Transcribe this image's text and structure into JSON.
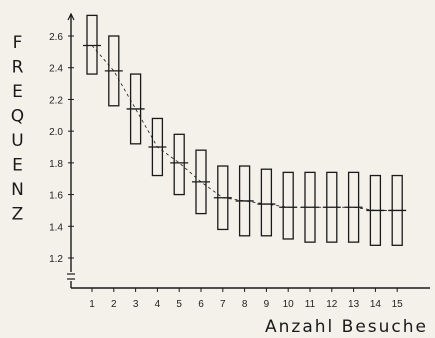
{
  "chart_data": {
    "type": "box",
    "ylabel": "FREQUENZ",
    "xlabel": "Anzahl Besuche",
    "y_axis_break": true,
    "ylim": [
      1.1,
      2.75
    ],
    "yticks": [
      "2.6",
      "2.4",
      "2.2",
      "2.0",
      "1.8",
      "1.6",
      "1.4",
      "1.2"
    ],
    "categories": [
      "1",
      "2",
      "3",
      "4",
      "5",
      "6",
      "7",
      "8",
      "9",
      "10",
      "11",
      "12",
      "13",
      "14",
      "15"
    ],
    "boxes": [
      {
        "x": "1",
        "low": 2.36,
        "high": 2.73,
        "mean": 2.54
      },
      {
        "x": "2",
        "low": 2.16,
        "high": 2.6,
        "mean": 2.38
      },
      {
        "x": "3",
        "low": 1.92,
        "high": 2.36,
        "mean": 2.14
      },
      {
        "x": "4",
        "low": 1.72,
        "high": 2.08,
        "mean": 1.9
      },
      {
        "x": "5",
        "low": 1.6,
        "high": 1.98,
        "mean": 1.8
      },
      {
        "x": "6",
        "low": 1.48,
        "high": 1.88,
        "mean": 1.68
      },
      {
        "x": "7",
        "low": 1.38,
        "high": 1.78,
        "mean": 1.58
      },
      {
        "x": "8",
        "low": 1.34,
        "high": 1.78,
        "mean": 1.56
      },
      {
        "x": "9",
        "low": 1.34,
        "high": 1.76,
        "mean": 1.54
      },
      {
        "x": "10",
        "low": 1.32,
        "high": 1.74,
        "mean": 1.52
      },
      {
        "x": "11",
        "low": 1.3,
        "high": 1.74,
        "mean": 1.52
      },
      {
        "x": "12",
        "low": 1.3,
        "high": 1.74,
        "mean": 1.52
      },
      {
        "x": "13",
        "low": 1.3,
        "high": 1.74,
        "mean": 1.52
      },
      {
        "x": "14",
        "low": 1.28,
        "high": 1.72,
        "mean": 1.5
      },
      {
        "x": "15",
        "low": 1.28,
        "high": 1.72,
        "mean": 1.5
      }
    ],
    "mean_line_style": "dashed",
    "grid": false,
    "colors": {
      "ink": "#1a1a1a",
      "paper": "#f3f1ea"
    }
  }
}
